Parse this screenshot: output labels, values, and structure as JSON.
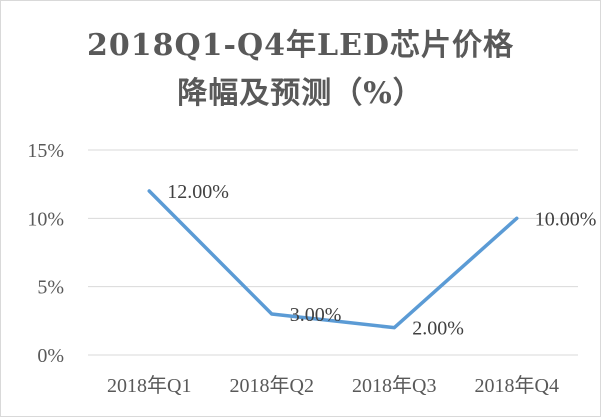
{
  "title_line1": "2018Q1-Q4年LED芯片价格",
  "title_line2": "降幅及预测（%）",
  "chart_data": {
    "type": "line",
    "title": "2018Q1-Q4年LED芯片价格降幅及预测（%）",
    "categories": [
      "2018年Q1",
      "2018年Q2",
      "2018年Q3",
      "2018年Q4"
    ],
    "series": [
      {
        "values": [
          12,
          3,
          2,
          10
        ],
        "labels": [
          "12.00%",
          "3.00%",
          "2.00%",
          "10.00%"
        ]
      }
    ],
    "ylim": [
      0,
      15
    ],
    "yticks": [
      "0%",
      "5%",
      "10%",
      "15%"
    ],
    "grid": true,
    "legend": "none",
    "line_color": "#5b9bd5",
    "grid_color": "#d9d9d9"
  }
}
